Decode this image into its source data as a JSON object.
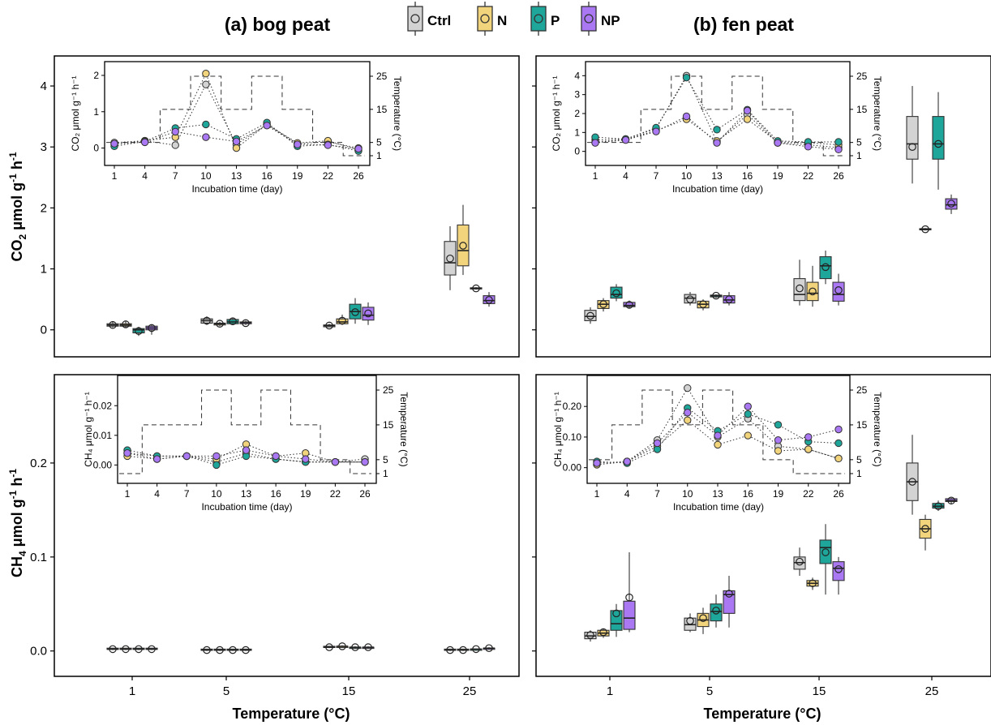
{
  "titles": {
    "a": "(a) bog peat",
    "b": "(b) fen peat"
  },
  "legend": [
    {
      "key": "ctrl",
      "label": "Ctrl",
      "color": "#d3d3d3"
    },
    {
      "key": "n",
      "label": "N",
      "color": "#f2d47d"
    },
    {
      "key": "p",
      "label": "P",
      "color": "#1fa69a"
    },
    {
      "key": "np",
      "label": "NP",
      "color": "#a978f2"
    }
  ],
  "axis": {
    "xlabel": "Temperature (°C)",
    "xticks": [
      "1",
      "5",
      "15",
      "25"
    ],
    "ylabel_co2": {
      "main": "CO",
      "sub": "2",
      "rest": " μmol g",
      "sup1": "-1",
      "mid": " h",
      "sup2": "-1"
    },
    "ylabel_ch4": {
      "main": "CH",
      "sub": "4",
      "rest": " μmol g",
      "sup1": "-1",
      "mid": " h",
      "sup2": "-1"
    }
  },
  "inset_labels": {
    "xlabel": "Incubation time (day)",
    "temp_label": "Temperature (°C)",
    "co2_ylabel": "CO₂ μmol g⁻¹ h⁻¹",
    "ch4_ylabel": "CH₄ μmol g⁻¹ h⁻¹",
    "days": [
      "1",
      "4",
      "7",
      "10",
      "13",
      "16",
      "19",
      "22",
      "26"
    ],
    "temp_ticks": [
      "1",
      "5",
      "15",
      "25"
    ]
  },
  "colors": {
    "ctrl": "#d3d3d3",
    "n": "#f2d47d",
    "p": "#1fa69a",
    "np": "#a978f2"
  },
  "chart_data": [
    {
      "panel": "bog-co2",
      "type": "box",
      "categories": [
        "1",
        "5",
        "15",
        "25"
      ],
      "ylim": [
        -0.15,
        4.2
      ],
      "yticks": [
        0,
        1,
        2,
        3,
        4
      ],
      "boxes": {
        "ctrl": [
          [
            0.04,
            0.06,
            0.08,
            0.1,
            0.13,
            0.08
          ],
          [
            0.08,
            0.11,
            0.15,
            0.18,
            0.22,
            0.15
          ],
          [
            0.04,
            0.05,
            0.07,
            0.08,
            0.1,
            0.07
          ],
          [
            0.65,
            0.9,
            1.1,
            1.45,
            1.7,
            1.17
          ]
        ],
        "n": [
          [
            0.04,
            0.06,
            0.08,
            0.1,
            0.14,
            0.09
          ],
          [
            0.06,
            0.08,
            0.1,
            0.11,
            0.13,
            0.1
          ],
          [
            0.08,
            0.1,
            0.13,
            0.18,
            0.25,
            0.15
          ],
          [
            0.9,
            1.05,
            1.3,
            1.72,
            2.05,
            1.38
          ]
        ],
        "p": [
          [
            -0.1,
            -0.05,
            0.0,
            0.02,
            0.05,
            -0.02
          ],
          [
            0.08,
            0.1,
            0.13,
            0.17,
            0.2,
            0.14
          ],
          [
            0.1,
            0.18,
            0.3,
            0.42,
            0.52,
            0.29
          ],
          [
            0.66,
            0.67,
            0.68,
            0.69,
            0.7,
            0.68
          ]
        ],
        "np": [
          [
            -0.08,
            0.0,
            0.03,
            0.06,
            0.08,
            0.03
          ],
          [
            0.08,
            0.1,
            0.12,
            0.13,
            0.15,
            0.11
          ],
          [
            0.08,
            0.16,
            0.24,
            0.37,
            0.45,
            0.27
          ],
          [
            0.38,
            0.43,
            0.48,
            0.56,
            0.62,
            0.49
          ]
        ]
      },
      "inset": {
        "ylabel": "CO₂ μmol g⁻¹ h⁻¹",
        "ylim": [
          -0.3,
          2.2
        ],
        "yticks": [
          0,
          1,
          2
        ],
        "series": {
          "ctrl": [
            0.15,
            0.2,
            0.08,
            1.75,
            0.1,
            0.65,
            0.12,
            0.17,
            0.0
          ],
          "n": [
            0.1,
            0.2,
            0.3,
            2.05,
            0.0,
            0.65,
            0.14,
            0.2,
            -0.05
          ],
          "p": [
            0.05,
            0.18,
            0.55,
            0.65,
            0.25,
            0.7,
            0.05,
            0.1,
            -0.08
          ],
          "np": [
            0.12,
            0.16,
            0.45,
            0.3,
            0.18,
            0.62,
            0.1,
            0.08,
            -0.02
          ]
        },
        "temperature": [
          5,
          5,
          15,
          25,
          15,
          25,
          15,
          5,
          1
        ]
      }
    },
    {
      "panel": "fen-co2",
      "type": "box",
      "categories": [
        "1",
        "5",
        "15",
        "25"
      ],
      "ylim": [
        -0.15,
        4.2
      ],
      "yticks": [
        0,
        1,
        2,
        3,
        4
      ],
      "boxes": {
        "ctrl": [
          [
            0.1,
            0.15,
            0.22,
            0.32,
            0.37,
            0.23
          ],
          [
            0.4,
            0.44,
            0.52,
            0.58,
            0.62,
            0.5
          ],
          [
            0.4,
            0.48,
            0.58,
            0.84,
            1.15,
            0.68
          ],
          [
            2.4,
            2.8,
            3.05,
            3.5,
            4.0,
            3.0
          ]
        ],
        "n": [
          [
            0.3,
            0.35,
            0.42,
            0.48,
            0.52,
            0.42
          ],
          [
            0.32,
            0.36,
            0.42,
            0.47,
            0.5,
            0.42
          ],
          [
            0.38,
            0.48,
            0.6,
            0.78,
            1.05,
            0.63
          ],
          [
            1.63,
            1.64,
            1.65,
            1.66,
            1.67,
            1.65
          ]
        ],
        "p": [
          [
            0.47,
            0.52,
            0.58,
            0.7,
            0.75,
            0.6
          ],
          [
            0.52,
            0.54,
            0.56,
            0.57,
            0.58,
            0.56
          ],
          [
            0.75,
            0.84,
            1.05,
            1.2,
            1.3,
            1.03
          ],
          [
            2.3,
            2.8,
            3.05,
            3.5,
            3.9,
            3.05
          ]
        ],
        "np": [
          [
            0.36,
            0.38,
            0.4,
            0.45,
            0.48,
            0.41
          ],
          [
            0.4,
            0.44,
            0.49,
            0.56,
            0.62,
            0.5
          ],
          [
            0.4,
            0.47,
            0.58,
            0.78,
            0.92,
            0.65
          ],
          [
            1.9,
            1.98,
            2.05,
            2.15,
            2.22,
            2.07
          ]
        ]
      },
      "inset": {
        "ylabel": "CO₂ μmol g⁻¹ h⁻¹",
        "ylim": [
          -0.4,
          4.4
        ],
        "yticks": [
          0,
          1,
          2,
          3,
          4
        ],
        "series": {
          "ctrl": [
            0.6,
            0.65,
            1.2,
            4.0,
            0.5,
            1.95,
            0.45,
            0.35,
            0.2
          ],
          "n": [
            0.5,
            0.62,
            1.1,
            1.7,
            0.55,
            1.7,
            0.5,
            0.45,
            0.35
          ],
          "p": [
            0.75,
            0.65,
            1.25,
            3.9,
            1.15,
            2.2,
            0.55,
            0.5,
            0.5
          ],
          "np": [
            0.45,
            0.6,
            1.05,
            1.85,
            0.45,
            2.15,
            0.45,
            0.25,
            0.1
          ]
        },
        "temperature": [
          5,
          5,
          15,
          25,
          15,
          25,
          15,
          5,
          1
        ]
      }
    },
    {
      "panel": "bog-ch4",
      "type": "box",
      "categories": [
        "1",
        "5",
        "15",
        "25"
      ],
      "ylim": [
        -0.008,
        0.275
      ],
      "yticks": [
        0.0,
        0.1,
        0.2
      ],
      "boxes": {
        "ctrl": [
          [
            0.001,
            0.002,
            0.002,
            0.003,
            0.003,
            0.002
          ],
          [
            0.0,
            0.001,
            0.001,
            0.002,
            0.002,
            0.001
          ],
          [
            0.003,
            0.004,
            0.004,
            0.005,
            0.005,
            0.004
          ],
          [
            0.0,
            0.001,
            0.001,
            0.002,
            0.002,
            0.001
          ]
        ],
        "n": [
          [
            0.001,
            0.002,
            0.002,
            0.003,
            0.003,
            0.002
          ],
          [
            0.0,
            0.001,
            0.001,
            0.002,
            0.002,
            0.001
          ],
          [
            0.004,
            0.004,
            0.005,
            0.005,
            0.006,
            0.005
          ],
          [
            0.0,
            0.001,
            0.001,
            0.002,
            0.002,
            0.001
          ]
        ],
        "p": [
          [
            0.001,
            0.002,
            0.002,
            0.003,
            0.003,
            0.002
          ],
          [
            0.0,
            0.001,
            0.001,
            0.002,
            0.002,
            0.001
          ],
          [
            0.003,
            0.003,
            0.004,
            0.004,
            0.005,
            0.004
          ],
          [
            0.001,
            0.001,
            0.002,
            0.002,
            0.002,
            0.002
          ]
        ],
        "np": [
          [
            0.001,
            0.002,
            0.002,
            0.003,
            0.003,
            0.002
          ],
          [
            0.0,
            0.001,
            0.001,
            0.002,
            0.002,
            0.001
          ],
          [
            0.003,
            0.003,
            0.004,
            0.004,
            0.005,
            0.004
          ],
          [
            0.002,
            0.002,
            0.003,
            0.003,
            0.004,
            0.003
          ]
        ]
      },
      "inset": {
        "ylabel": "CH₄ μmol g⁻¹ h⁻¹",
        "ylim": [
          -0.004,
          0.028
        ],
        "yticks": [
          0.0,
          0.01,
          0.02
        ],
        "series": {
          "ctrl": [
            0.004,
            0.003,
            0.003,
            0.001,
            0.004,
            0.002,
            0.001,
            0.001,
            0.002
          ],
          "n": [
            0.003,
            0.002,
            0.003,
            0.002,
            0.007,
            0.003,
            0.004,
            0.001,
            0.001
          ],
          "p": [
            0.005,
            0.003,
            0.003,
            0.0,
            0.003,
            0.002,
            0.001,
            0.001,
            0.001
          ],
          "np": [
            0.004,
            0.002,
            0.003,
            0.003,
            0.005,
            0.003,
            0.002,
            0.001,
            0.001
          ]
        },
        "temperature": [
          1,
          15,
          15,
          25,
          15,
          25,
          15,
          5,
          1
        ]
      }
    },
    {
      "panel": "fen-ch4",
      "type": "box",
      "categories": [
        "1",
        "5",
        "15",
        "25"
      ],
      "ylim": [
        -0.008,
        0.275
      ],
      "yticks": [
        0.0,
        0.1,
        0.2
      ],
      "boxes": {
        "ctrl": [
          [
            0.01,
            0.013,
            0.016,
            0.02,
            0.022,
            0.017
          ],
          [
            0.02,
            0.022,
            0.028,
            0.035,
            0.04,
            0.032
          ],
          [
            0.08,
            0.087,
            0.094,
            0.1,
            0.11,
            0.095
          ],
          [
            0.145,
            0.16,
            0.18,
            0.2,
            0.23,
            0.18
          ]
        ],
        "n": [
          [
            0.014,
            0.016,
            0.019,
            0.022,
            0.024,
            0.02
          ],
          [
            0.018,
            0.026,
            0.033,
            0.04,
            0.046,
            0.035
          ],
          [
            0.065,
            0.069,
            0.072,
            0.075,
            0.078,
            0.072
          ],
          [
            0.107,
            0.12,
            0.13,
            0.14,
            0.145,
            0.13
          ]
        ],
        "p": [
          [
            0.015,
            0.022,
            0.029,
            0.043,
            0.05,
            0.04
          ],
          [
            0.025,
            0.032,
            0.042,
            0.05,
            0.06,
            0.043
          ],
          [
            0.06,
            0.093,
            0.11,
            0.118,
            0.135,
            0.105
          ],
          [
            0.149,
            0.152,
            0.154,
            0.157,
            0.16,
            0.154
          ]
        ],
        "np": [
          [
            0.02,
            0.023,
            0.035,
            0.053,
            0.105,
            0.057
          ],
          [
            0.025,
            0.04,
            0.06,
            0.064,
            0.08,
            0.061
          ],
          [
            0.06,
            0.075,
            0.088,
            0.095,
            0.1,
            0.087
          ],
          [
            0.156,
            0.159,
            0.16,
            0.162,
            0.163,
            0.16
          ]
        ]
      },
      "inset": {
        "ylabel": "CH₄ μmol g⁻¹ h⁻¹",
        "ylim": [
          -0.03,
          0.28
        ],
        "yticks": [
          0.0,
          0.1,
          0.2
        ],
        "series": {
          "ctrl": [
            0.01,
            0.02,
            0.09,
            0.26,
            0.1,
            0.16,
            0.07,
            0.06,
            0.03
          ],
          "n": [
            0.01,
            0.02,
            0.07,
            0.155,
            0.075,
            0.105,
            0.055,
            0.06,
            0.03
          ],
          "p": [
            0.02,
            0.015,
            0.06,
            0.195,
            0.12,
            0.175,
            0.14,
            0.085,
            0.08
          ],
          "np": [
            0.015,
            0.02,
            0.08,
            0.18,
            0.105,
            0.2,
            0.09,
            0.1,
            0.125
          ]
        },
        "temperature": [
          5,
          15,
          25,
          15,
          25,
          15,
          5,
          1,
          1
        ]
      }
    }
  ]
}
